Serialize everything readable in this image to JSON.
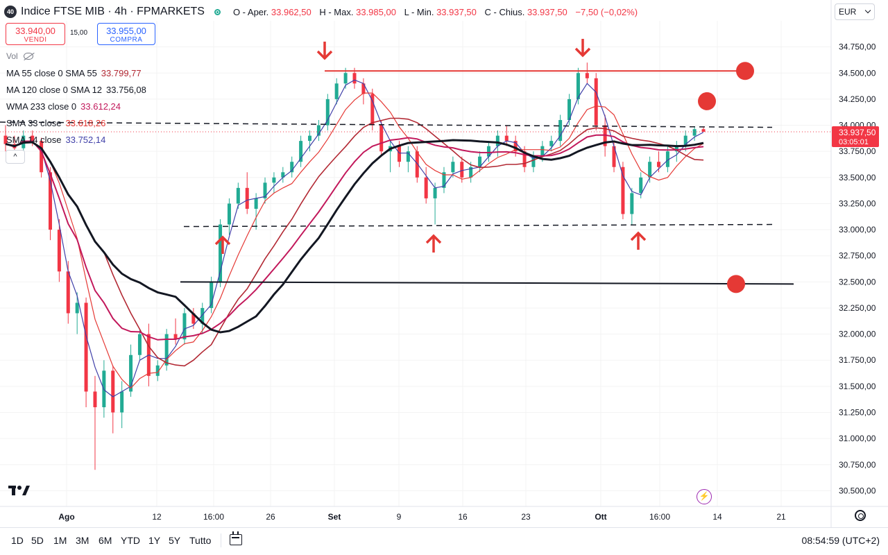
{
  "header": {
    "badge": "40",
    "title": "Indice FTSE MIB · 4h · FPMARKETS",
    "ohlc": [
      {
        "label": "O - Aper.",
        "value": "33.962,50"
      },
      {
        "label": "H - Max.",
        "value": "33.985,00"
      },
      {
        "label": "L - Min.",
        "value": "33.937,50"
      },
      {
        "label": "C - Chius.",
        "value": "33.937,50"
      },
      {
        "label": "",
        "value": "−7,50 (−0,02%)"
      }
    ]
  },
  "trade": {
    "sell_price": "33.940,00",
    "sell_label": "VENDI",
    "spread": "15,00",
    "buy_price": "33.955,00",
    "buy_label": "COMPRA"
  },
  "volume_label": "Vol",
  "indicators": [
    {
      "label": "MA 55 close 0 SMA 55",
      "value": "33.799,77",
      "color": "#b22833"
    },
    {
      "label": "MA 120 close 0 SMA 12",
      "value": "33.756,08",
      "color": "#131722"
    },
    {
      "label": "WMA 233 close 0",
      "value": "33.612,24",
      "color": "#c2185b"
    },
    {
      "label": "SMA 33 close",
      "value": "33.618,26",
      "color": "#e53935"
    },
    {
      "label": "SMA 14 close",
      "value": "33.752,14",
      "color": "#3f3fa8"
    }
  ],
  "currency": "EUR",
  "price_badge": {
    "price": "33.937,50",
    "countdown": "03:05:01"
  },
  "bottom": {
    "ranges": [
      "1D",
      "5D",
      "1M",
      "3M",
      "6M",
      "YTD",
      "1Y",
      "5Y",
      "Tutto"
    ],
    "clock": "08:54:59 (UTC+2)"
  },
  "colors": {
    "up": "#22ab94",
    "down": "#f23645",
    "annotation": "#e53935"
  },
  "icons": [
    "tradingview-logo-icon",
    "eye-off-icon",
    "chevron-up-icon",
    "calendar-icon",
    "lightning-icon",
    "settings-icon"
  ],
  "chart_data": {
    "type": "candlestick",
    "x_ticks": [
      "Ago",
      "12",
      "16:00",
      "26",
      "Set",
      "9",
      "16",
      "23",
      "Ott",
      "16:00",
      "14",
      "21"
    ],
    "y_ticks": [
      "30.500,00",
      "30.750,00",
      "31.000,00",
      "31.250,00",
      "31.500,00",
      "31.750,00",
      "32.000,00",
      "32.250,00",
      "32.500,00",
      "32.750,00",
      "33.000,00",
      "33.250,00",
      "33.500,00",
      "33.750,00",
      "34.000,00",
      "34.250,00",
      "34.500,00",
      "34.750,00"
    ],
    "ylim": [
      30350,
      35000
    ],
    "last_price": 33937.5,
    "candles": [
      [
        33900,
        34000,
        33750,
        33820
      ],
      [
        33820,
        33900,
        33700,
        33780
      ],
      [
        33780,
        33950,
        33700,
        33900
      ],
      [
        33900,
        33950,
        33800,
        33850
      ],
      [
        33850,
        33880,
        33500,
        33550
      ],
      [
        33550,
        33600,
        32900,
        33000
      ],
      [
        33000,
        33100,
        32500,
        32600
      ],
      [
        32600,
        32700,
        32100,
        32200
      ],
      [
        32200,
        32400,
        32000,
        32300
      ],
      [
        32300,
        32350,
        31300,
        31450
      ],
      [
        31450,
        31600,
        30700,
        31300
      ],
      [
        31300,
        31750,
        31200,
        31650
      ],
      [
        31650,
        31700,
        31050,
        31250
      ],
      [
        31250,
        31550,
        31100,
        31450
      ],
      [
        31450,
        31900,
        31400,
        31800
      ],
      [
        31800,
        32050,
        31750,
        32000
      ],
      [
        32000,
        32100,
        31500,
        31600
      ],
      [
        31600,
        31750,
        31550,
        31700
      ],
      [
        31700,
        32050,
        31650,
        32000
      ],
      [
        32000,
        32150,
        31900,
        31950
      ],
      [
        31950,
        32250,
        31900,
        32200
      ],
      [
        32200,
        32250,
        32050,
        32100
      ],
      [
        32100,
        32300,
        32000,
        32250
      ],
      [
        32250,
        32550,
        32200,
        32500
      ],
      [
        32500,
        33100,
        32450,
        33050
      ],
      [
        33050,
        33300,
        32950,
        33250
      ],
      [
        33250,
        33450,
        33200,
        33400
      ],
      [
        33400,
        33550,
        33150,
        33200
      ],
      [
        33200,
        33350,
        33000,
        33300
      ],
      [
        33300,
        33500,
        33250,
        33450
      ],
      [
        33450,
        33550,
        33350,
        33500
      ],
      [
        33500,
        33600,
        33450,
        33550
      ],
      [
        33550,
        33700,
        33500,
        33650
      ],
      [
        33650,
        33900,
        33600,
        33850
      ],
      [
        33850,
        33950,
        33750,
        33900
      ],
      [
        33900,
        34050,
        33850,
        34000
      ],
      [
        34000,
        34300,
        33950,
        34250
      ],
      [
        34250,
        34450,
        34200,
        34400
      ],
      [
        34400,
        34550,
        34350,
        34500
      ],
      [
        34500,
        34550,
        34350,
        34400
      ],
      [
        34400,
        34450,
        34200,
        34300
      ],
      [
        34300,
        34350,
        33950,
        34000
      ],
      [
        34000,
        34050,
        33700,
        33750
      ],
      [
        33750,
        33850,
        33550,
        33800
      ],
      [
        33800,
        33850,
        33600,
        33650
      ],
      [
        33650,
        33800,
        33550,
        33750
      ],
      [
        33750,
        33800,
        33450,
        33500
      ],
      [
        33500,
        33600,
        33250,
        33300
      ],
      [
        33300,
        33450,
        33050,
        33400
      ],
      [
        33400,
        33600,
        33350,
        33550
      ],
      [
        33550,
        33700,
        33500,
        33650
      ],
      [
        33650,
        33700,
        33450,
        33500
      ],
      [
        33500,
        33650,
        33450,
        33600
      ],
      [
        33600,
        33750,
        33550,
        33700
      ],
      [
        33700,
        33850,
        33650,
        33800
      ],
      [
        33800,
        33950,
        33700,
        33900
      ],
      [
        33900,
        34000,
        33800,
        33850
      ],
      [
        33850,
        33900,
        33700,
        33750
      ],
      [
        33750,
        33800,
        33550,
        33600
      ],
      [
        33600,
        33750,
        33550,
        33700
      ],
      [
        33700,
        33850,
        33650,
        33800
      ],
      [
        33800,
        33900,
        33750,
        33850
      ],
      [
        33850,
        34100,
        33800,
        34050
      ],
      [
        34050,
        34300,
        34000,
        34250
      ],
      [
        34250,
        34550,
        34200,
        34500
      ],
      [
        34500,
        34600,
        34400,
        34450
      ],
      [
        34450,
        34500,
        33950,
        34000
      ],
      [
        34000,
        34100,
        33700,
        33800
      ],
      [
        33800,
        33850,
        33550,
        33600
      ],
      [
        33600,
        33650,
        33100,
        33150
      ],
      [
        33150,
        33400,
        33050,
        33350
      ],
      [
        33350,
        33550,
        33300,
        33500
      ],
      [
        33500,
        33700,
        33450,
        33650
      ],
      [
        33650,
        33750,
        33550,
        33600
      ],
      [
        33600,
        33800,
        33550,
        33750
      ],
      [
        33750,
        33850,
        33650,
        33800
      ],
      [
        33800,
        33950,
        33750,
        33900
      ],
      [
        33900,
        33985,
        33850,
        33962.5
      ],
      [
        33962.5,
        33985,
        33937.5,
        33937.5
      ]
    ]
  }
}
